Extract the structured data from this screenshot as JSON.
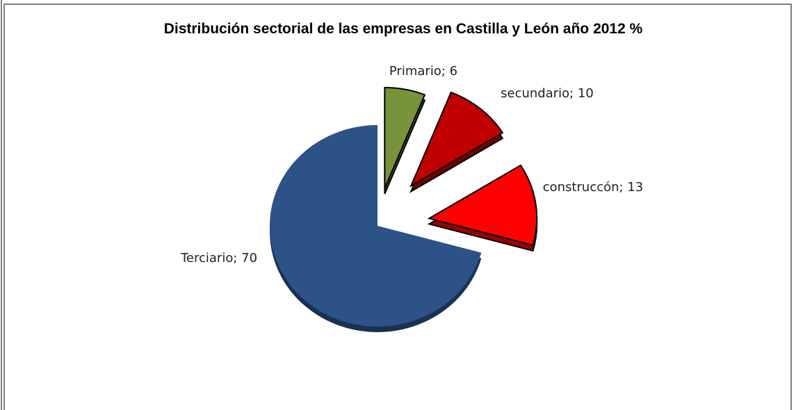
{
  "chart_data": {
    "type": "pie",
    "title": "Distribución sectorial de las empresas en Castilla y León año 2012 %",
    "values": [
      6,
      10,
      13,
      70
    ],
    "value_labels": [
      "Primario; 6",
      "secundario; 10",
      "construccón; 13",
      "Terciario; 70"
    ],
    "colors": [
      "#77933c",
      "#c00000",
      "#ff0000",
      "#2c5287"
    ]
  }
}
